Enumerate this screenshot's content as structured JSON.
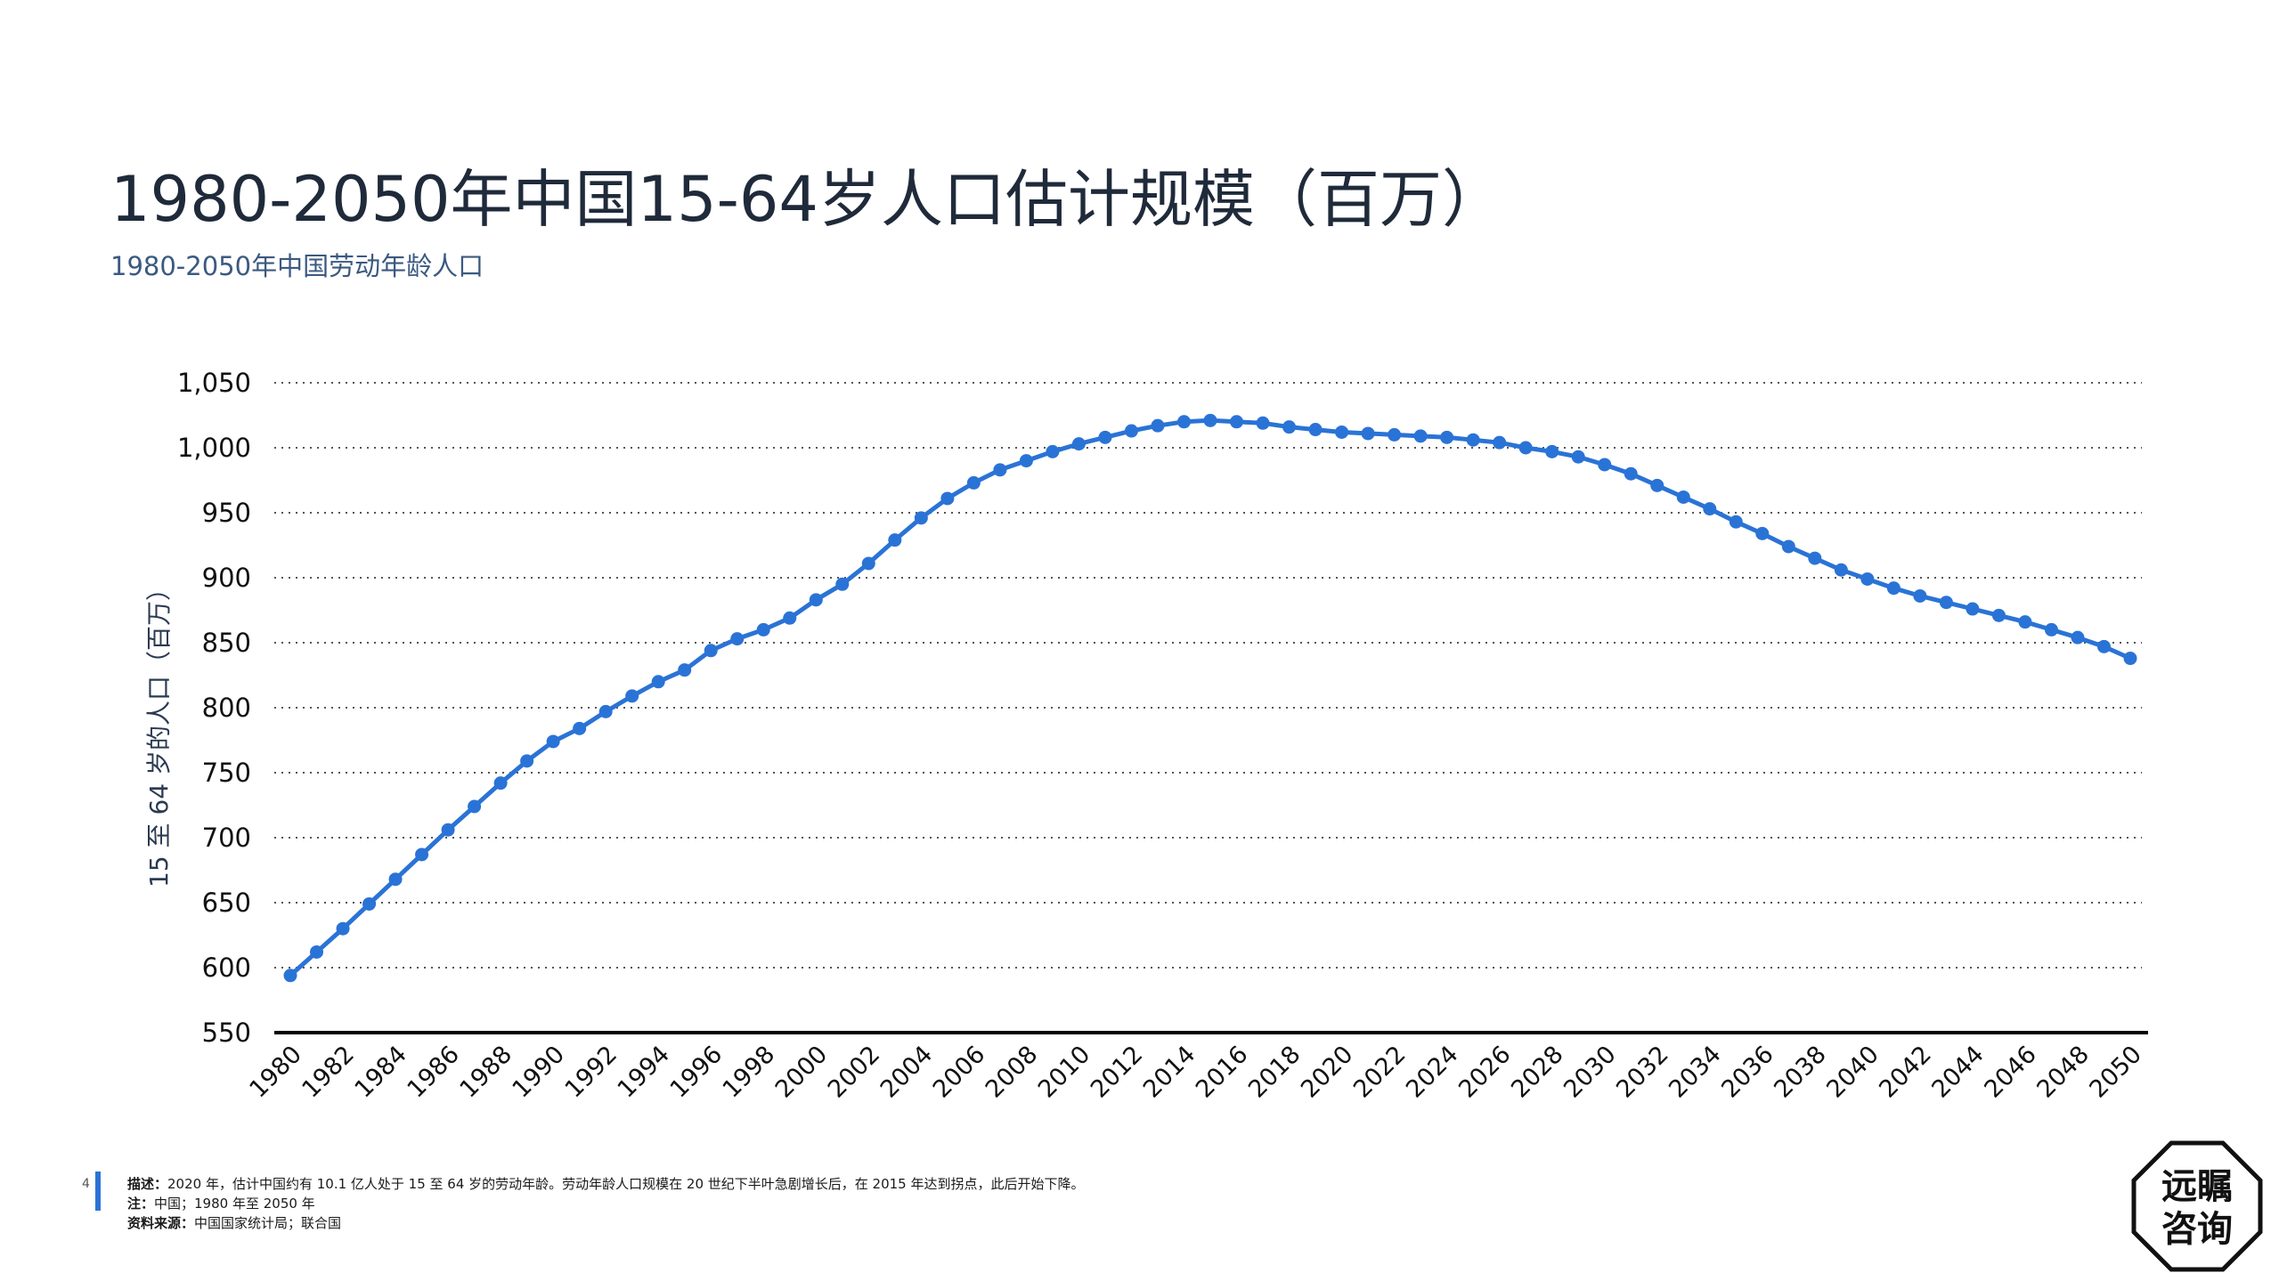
{
  "header": {
    "title": "1980-2050年中国15-64岁人口估计规模（百万）",
    "subtitle": "1980-2050年中国劳动年龄人口"
  },
  "footer": {
    "page_number": "4",
    "description_label": "描述：",
    "description_text": "2020 年，估计中国约有 10.1 亿人处于 15 至 64 岁的劳动年龄。劳动年龄人口规模在 20 世纪下半叶急剧增长后，在 2015 年达到拐点，此后开始下降。",
    "note_label": "注：",
    "note_text": "中国；1980 年至 2050 年",
    "source_label": "资料来源：",
    "source_text": "中国国家统计局；联合国"
  },
  "logo": {
    "line1": "远瞩",
    "line2": "咨询"
  },
  "colors": {
    "series": "#2a73d6",
    "title": "#1f2a3a",
    "subtitle": "#3b5a80"
  },
  "chart_data": {
    "type": "line",
    "title": "",
    "xlabel": "",
    "ylabel": "15 至 64 岁的人口（百万）",
    "ylim": [
      550,
      1050
    ],
    "yticks": [
      "550",
      "600",
      "650",
      "700",
      "750",
      "800",
      "850",
      "900",
      "950",
      "1,000",
      "1,050"
    ],
    "xticks": [
      "1980",
      "1982",
      "1984",
      "1986",
      "1988",
      "1990",
      "1992",
      "1994",
      "1996",
      "1998",
      "2000",
      "2002",
      "2004",
      "2006",
      "2008",
      "2010",
      "2012",
      "2014",
      "2016",
      "2018",
      "2020",
      "2022",
      "2024",
      "2026",
      "2028",
      "2030",
      "2032",
      "2034",
      "2036",
      "2038",
      "2040",
      "2042",
      "2044",
      "2046",
      "2048",
      "2050"
    ],
    "grid": "horizontal-dotted",
    "legend": "none",
    "series": [
      {
        "x": [
          1980,
          1981,
          1982,
          1983,
          1984,
          1985,
          1986,
          1987,
          1988,
          1989,
          1990,
          1991,
          1992,
          1993,
          1994,
          1995,
          1996,
          1997,
          1998,
          1999,
          2000,
          2001,
          2002,
          2003,
          2004,
          2005,
          2006,
          2007,
          2008,
          2009,
          2010,
          2011,
          2012,
          2013,
          2014,
          2015,
          2016,
          2017,
          2018,
          2019,
          2020,
          2021,
          2022,
          2023,
          2024,
          2025,
          2026,
          2027,
          2028,
          2029,
          2030,
          2031,
          2032,
          2033,
          2034,
          2035,
          2036,
          2037,
          2038,
          2039,
          2040,
          2041,
          2042,
          2043,
          2044,
          2045,
          2046,
          2047,
          2048,
          2049,
          2050
        ],
        "values": [
          594,
          612,
          630,
          649,
          668,
          687,
          706,
          724,
          742,
          759,
          774,
          784,
          797,
          809,
          820,
          829,
          844,
          853,
          860,
          869,
          883,
          895,
          911,
          929,
          946,
          961,
          973,
          983,
          990,
          997,
          1003,
          1008,
          1013,
          1017,
          1020,
          1021,
          1020,
          1019,
          1016,
          1014,
          1012,
          1011,
          1010,
          1009,
          1008,
          1006,
          1004,
          1000,
          997,
          993,
          987,
          980,
          971,
          962,
          953,
          943,
          934,
          924,
          915,
          906,
          899,
          892,
          886,
          881,
          876,
          871,
          866,
          860,
          854,
          847,
          838
        ]
      }
    ]
  }
}
